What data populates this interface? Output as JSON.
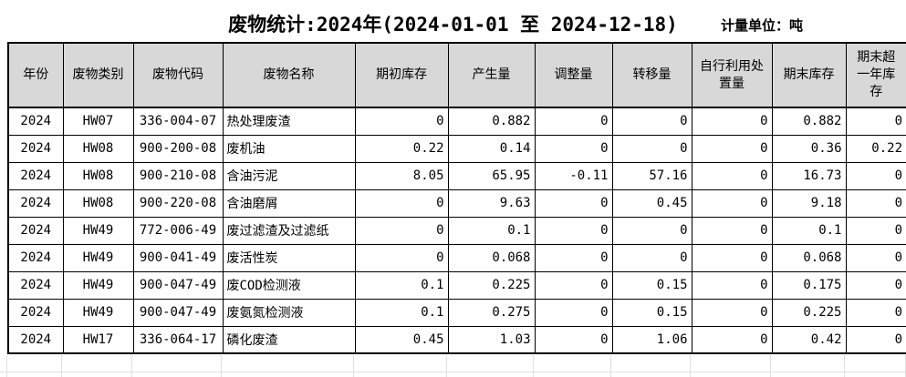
{
  "header": {
    "title": "废物统计:2024年(2024-01-01 至 2024-12-18)",
    "unit_label": "计量单位：吨"
  },
  "table": {
    "columns": [
      "年份",
      "废物类别",
      "废物代码",
      "废物名称",
      "期初库存",
      "产生量",
      "调整量",
      "转移量",
      "自行利用处置量",
      "期末库存",
      "期末超一年库存"
    ],
    "rows": [
      [
        "2024",
        "HW07",
        "336-004-07",
        "热处理废渣",
        "0",
        "0.882",
        "0",
        "0",
        "0",
        "0.882",
        "0"
      ],
      [
        "2024",
        "HW08",
        "900-200-08",
        "废机油",
        "0.22",
        "0.14",
        "0",
        "0",
        "0",
        "0.36",
        "0.22"
      ],
      [
        "2024",
        "HW08",
        "900-210-08",
        "含油污泥",
        "8.05",
        "65.95",
        "-0.11",
        "57.16",
        "0",
        "16.73",
        "0"
      ],
      [
        "2024",
        "HW08",
        "900-220-08",
        "含油磨屑",
        "0",
        "9.63",
        "0",
        "0.45",
        "0",
        "9.18",
        "0"
      ],
      [
        "2024",
        "HW49",
        "772-006-49",
        "废过滤渣及过滤纸",
        "0",
        "0.1",
        "0",
        "0",
        "0",
        "0.1",
        "0"
      ],
      [
        "2024",
        "HW49",
        "900-041-49",
        "废活性炭",
        "0",
        "0.068",
        "0",
        "0",
        "0",
        "0.068",
        "0"
      ],
      [
        "2024",
        "HW49",
        "900-047-49",
        "废COD检测液",
        "0.1",
        "0.225",
        "0",
        "0.15",
        "0",
        "0.175",
        "0"
      ],
      [
        "2024",
        "HW49",
        "900-047-49",
        "废氨氮检测液",
        "0.1",
        "0.275",
        "0",
        "0.15",
        "0",
        "0.225",
        "0"
      ],
      [
        "2024",
        "HW17",
        "336-064-17",
        "磷化废渣",
        "0.45",
        "1.03",
        "0",
        "1.06",
        "0",
        "0.42",
        "0"
      ]
    ]
  },
  "colors": {
    "header_bg": "#d8d8d8",
    "border": "#000000",
    "ghost_grid_line": "#e0e0e0",
    "text": "#000000",
    "background": "#ffffff"
  }
}
